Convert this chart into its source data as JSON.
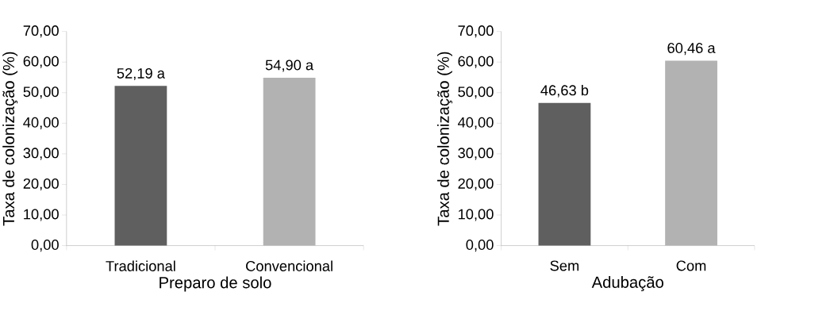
{
  "chart_data": [
    {
      "type": "bar",
      "xlabel": "Preparo de solo",
      "ylabel": "Taxa de colonização (%)",
      "categories": [
        "Tradicional",
        "Convencional"
      ],
      "values": [
        52.19,
        54.9
      ],
      "colors": [
        "#5f5f5f",
        "#b2b2b2"
      ],
      "value_labels": [
        "52,19 a",
        "54,90 a"
      ],
      "ylim": [
        0,
        70
      ],
      "yticks": [
        {
          "value": 0,
          "label": "0,00"
        },
        {
          "value": 10,
          "label": "10,00"
        },
        {
          "value": 20,
          "label": "20,00"
        },
        {
          "value": 30,
          "label": "30,00"
        },
        {
          "value": 40,
          "label": "40,00"
        },
        {
          "value": 50,
          "label": "50,00"
        },
        {
          "value": 60,
          "label": "60,00"
        },
        {
          "value": 70,
          "label": "70,00"
        }
      ]
    },
    {
      "type": "bar",
      "xlabel": "Adubação",
      "ylabel": "Taxa de colonização (%)",
      "categories": [
        "Sem",
        "Com"
      ],
      "values": [
        46.63,
        60.46
      ],
      "colors": [
        "#5f5f5f",
        "#b2b2b2"
      ],
      "value_labels": [
        "46,63 b",
        "60,46 a"
      ],
      "ylim": [
        0,
        70
      ],
      "yticks": [
        {
          "value": 0,
          "label": "0,00"
        },
        {
          "value": 10,
          "label": "10,00"
        },
        {
          "value": 20,
          "label": "20,00"
        },
        {
          "value": 30,
          "label": "30,00"
        },
        {
          "value": 40,
          "label": "40,00"
        },
        {
          "value": 50,
          "label": "50,00"
        },
        {
          "value": 60,
          "label": "60,00"
        },
        {
          "value": 70,
          "label": "70,00"
        }
      ]
    }
  ]
}
